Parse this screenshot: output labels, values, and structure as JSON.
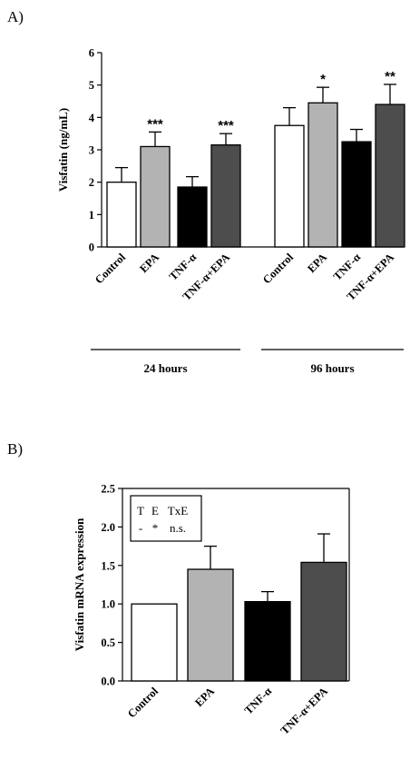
{
  "panels": {
    "a": {
      "label": "A)"
    },
    "b": {
      "label": "B)"
    }
  },
  "chart_data": [
    {
      "type": "bar",
      "ylabel": "Visfatin (ng/mL)",
      "ylim": [
        0,
        6
      ],
      "yticks": [
        "0",
        "1",
        "2",
        "3",
        "4",
        "5",
        "6"
      ],
      "categories": [
        "Control",
        "EPA",
        "TNF-α",
        "TNF-α+EPA",
        "Control",
        "EPA",
        "TNF-α",
        "TNF-α+EPA"
      ],
      "values": [
        2.0,
        3.1,
        1.85,
        3.15,
        3.75,
        4.45,
        3.25,
        4.4
      ],
      "errors": [
        0.45,
        0.45,
        0.32,
        0.35,
        0.55,
        0.48,
        0.38,
        0.62
      ],
      "significance": [
        "",
        "***",
        "",
        "***",
        "",
        "*",
        "",
        "**"
      ],
      "groups": [
        "24 hours",
        "96 hours"
      ],
      "colors": [
        "#ffffff",
        "#b3b3b3",
        "#000000",
        "#4d4d4d",
        "#ffffff",
        "#b3b3b3",
        "#000000",
        "#4d4d4d"
      ]
    },
    {
      "type": "bar",
      "ylabel": "Visfatin mRNA expression",
      "ylim": [
        0,
        2.5
      ],
      "yticks": [
        "0.0",
        "0.5",
        "1.0",
        "1.5",
        "2.0",
        "2.5"
      ],
      "categories": [
        "Control",
        "EPA",
        "TNF-α",
        "TNF-α+EPA"
      ],
      "values": [
        1.0,
        1.45,
        1.03,
        1.54
      ],
      "errors": [
        0,
        0.3,
        0.13,
        0.37
      ],
      "colors": [
        "#ffffff",
        "#b3b3b3",
        "#000000",
        "#4d4d4d"
      ],
      "legend": {
        "headers": [
          "T",
          "E",
          "TxE"
        ],
        "values": [
          "-",
          "*",
          "n.s."
        ]
      }
    }
  ]
}
